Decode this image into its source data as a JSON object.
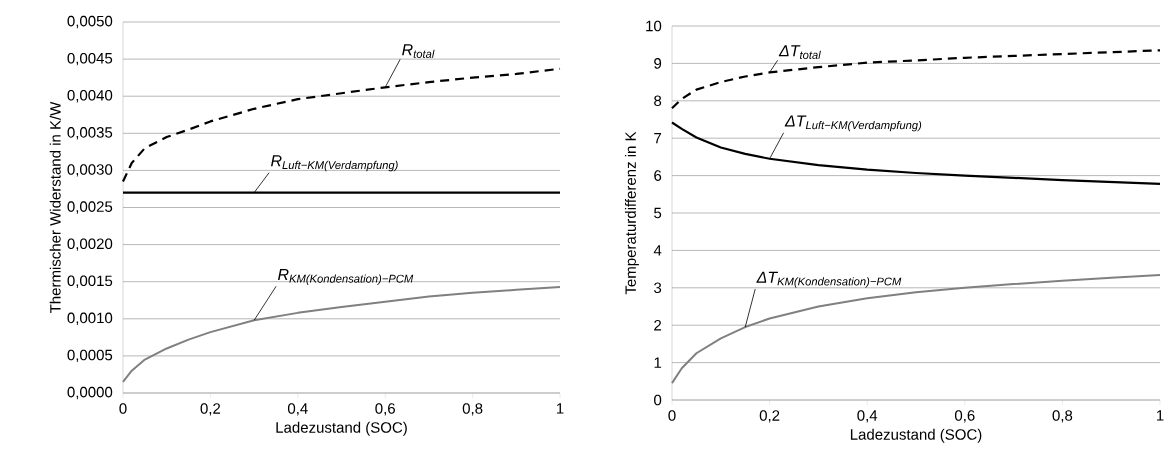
{
  "chart_data": [
    {
      "type": "line",
      "xlabel": "Ladezustand (SOC)",
      "ylabel": "Thermischer Widerstand in K/W",
      "grid": "y",
      "xlim": [
        0,
        1
      ],
      "ylim": [
        0,
        0.005
      ],
      "xticks": [
        0,
        {
          "value": 0.2,
          "label": "0,2"
        },
        {
          "value": 0.4,
          "label": "0,4"
        },
        {
          "value": 0.6,
          "label": "0,6"
        },
        {
          "value": 0.8,
          "label": "0,8"
        },
        1
      ],
      "yticks": [
        {
          "value": 0,
          "label": "0,0000"
        },
        {
          "value": 0.0005,
          "label": "0,0005"
        },
        {
          "value": 0.001,
          "label": "0,0010"
        },
        {
          "value": 0.0015,
          "label": "0,0015"
        },
        {
          "value": 0.002,
          "label": "0,0020"
        },
        {
          "value": 0.0025,
          "label": "0,0025"
        },
        {
          "value": 0.003,
          "label": "0,0030"
        },
        {
          "value": 0.0035,
          "label": "0,0035"
        },
        {
          "value": 0.004,
          "label": "0,0040"
        },
        {
          "value": 0.0045,
          "label": "0,0045"
        },
        {
          "value": 0.005,
          "label": "0,0050"
        }
      ],
      "x": [
        0,
        0.02,
        0.05,
        0.1,
        0.15,
        0.2,
        0.3,
        0.4,
        0.5,
        0.6,
        0.7,
        0.8,
        0.9,
        1
      ],
      "series": [
        {
          "name": "\\text{\\itshape R}_{\\text{\\itshape total}}",
          "color": "#000000",
          "line_style": "dashed",
          "values": [
            0.00285,
            0.0031,
            0.0033,
            0.00345,
            0.00355,
            0.00366,
            0.00383,
            0.00396,
            0.00404,
            0.00412,
            0.00419,
            0.00425,
            0.0043,
            0.00437
          ]
        },
        {
          "name": "\\text{\\itshape R}_{\\text{\\itshape Luft−KM(Verdampfung)}}",
          "color": "#000000",
          "line_style": "solid",
          "values": [
            0.0027,
            0.0027,
            0.0027,
            0.0027,
            0.0027,
            0.0027,
            0.0027,
            0.0027,
            0.0027,
            0.0027,
            0.0027,
            0.0027,
            0.0027,
            0.0027
          ]
        },
        {
          "name": "\\text{\\itshape R}_{\\text{\\itshape KM(Kondensation)−PCM}}",
          "color": "#808080",
          "line_style": "solid",
          "values": [
            0.00015,
            0.0003,
            0.00045,
            0.0006,
            0.00072,
            0.00082,
            0.00098,
            0.00108,
            0.00116,
            0.00123,
            0.0013,
            0.00135,
            0.00139,
            0.00143
          ]
        }
      ]
    },
    {
      "type": "line",
      "xlabel": "Ladezustand (SOC)",
      "ylabel": "Temperaturdifferenz in K",
      "grid": "y",
      "xlim": [
        0,
        1
      ],
      "ylim": [
        0,
        10
      ],
      "xticks": [
        0,
        {
          "value": 0.2,
          "label": "0,2"
        },
        {
          "value": 0.4,
          "label": "0,4"
        },
        {
          "value": 0.6,
          "label": "0,6"
        },
        {
          "value": 0.8,
          "label": "0,8"
        },
        1
      ],
      "yticks": [
        0,
        1,
        2,
        3,
        4,
        5,
        6,
        7,
        8,
        9,
        10
      ],
      "x": [
        0,
        0.02,
        0.05,
        0.1,
        0.15,
        0.2,
        0.3,
        0.4,
        0.5,
        0.6,
        0.7,
        0.8,
        0.9,
        1
      ],
      "series": [
        {
          "name": "\\text{\\itshape ΔT}_{\\text{\\itshape total}}",
          "color": "#000000",
          "line_style": "dashed",
          "values": [
            7.8,
            8.05,
            8.3,
            8.5,
            8.65,
            8.76,
            8.9,
            9.02,
            9.08,
            9.15,
            9.2,
            9.25,
            9.3,
            9.35
          ]
        },
        {
          "name": "\\text{\\itshape ΔT}_{\\text{\\itshape Luft−KM(Verdampfung)}}",
          "color": "#000000",
          "line_style": "solid",
          "values": [
            7.42,
            7.25,
            7.02,
            6.75,
            6.58,
            6.45,
            6.28,
            6.16,
            6.07,
            6.0,
            5.94,
            5.88,
            5.83,
            5.78
          ]
        },
        {
          "name": "\\text{\\itshape ΔT}_{\\text{\\itshape KM(Kondensation)−PCM}}",
          "color": "#808080",
          "line_style": "solid",
          "values": [
            0.45,
            0.85,
            1.25,
            1.65,
            1.95,
            2.18,
            2.5,
            2.72,
            2.88,
            3.0,
            3.1,
            3.19,
            3.27,
            3.34
          ]
        }
      ]
    }
  ]
}
